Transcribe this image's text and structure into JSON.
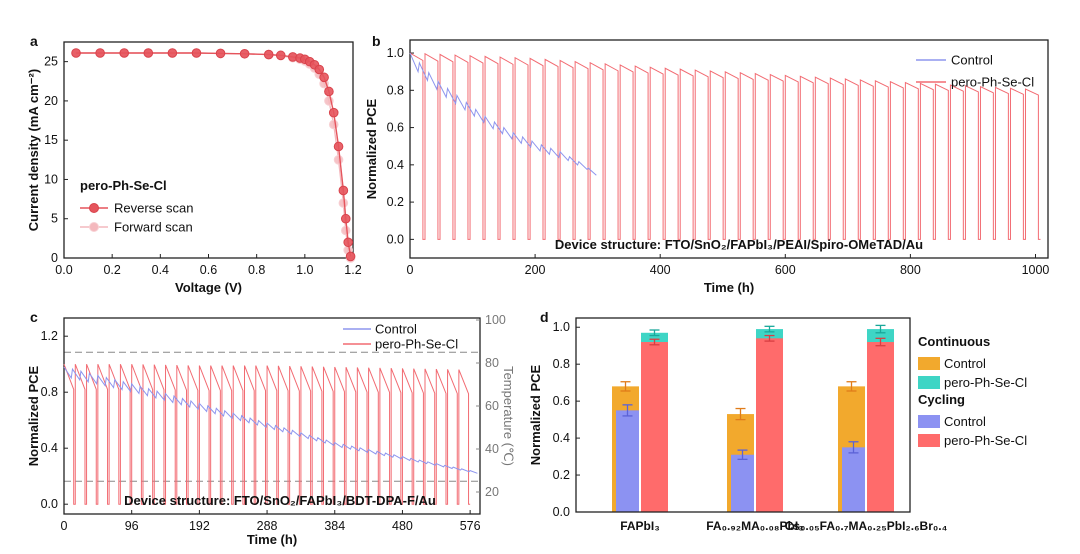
{
  "chart_data": [
    {
      "panel": "a",
      "type": "scatter",
      "xlabel": "Voltage (V)",
      "ylabel": "Current density (mA cm⁻²)",
      "xlim": [
        0,
        1.2
      ],
      "ylim": [
        0,
        27.5
      ],
      "xticks": [
        "0.0",
        "0.2",
        "0.4",
        "0.6",
        "0.8",
        "1.0",
        "1.2"
      ],
      "yticks": [
        "0",
        "5",
        "10",
        "15",
        "20",
        "25"
      ],
      "legend_title": "pero-Ph-Se-Cl",
      "legend_position": "left-middle",
      "series": [
        {
          "name": "Reverse scan",
          "color": "#e5545c",
          "x": [
            0.05,
            0.15,
            0.25,
            0.35,
            0.45,
            0.55,
            0.65,
            0.75,
            0.85,
            0.9,
            0.95,
            0.98,
            1.0,
            1.02,
            1.04,
            1.06,
            1.08,
            1.1,
            1.12,
            1.14,
            1.16,
            1.17,
            1.18,
            1.19
          ],
          "y": [
            26.1,
            26.1,
            26.1,
            26.1,
            26.1,
            26.1,
            26.05,
            26.0,
            25.9,
            25.8,
            25.6,
            25.45,
            25.3,
            25.0,
            24.6,
            24.0,
            23.0,
            21.2,
            18.5,
            14.2,
            8.6,
            5.0,
            2.0,
            0.2
          ]
        },
        {
          "name": "Forward scan",
          "color": "#f4b8bd",
          "x": [
            0.05,
            0.15,
            0.25,
            0.35,
            0.45,
            0.55,
            0.65,
            0.75,
            0.85,
            0.9,
            0.95,
            0.98,
            1.0,
            1.02,
            1.04,
            1.06,
            1.08,
            1.1,
            1.12,
            1.14,
            1.16,
            1.17,
            1.18,
            1.19
          ],
          "y": [
            26.1,
            26.1,
            26.1,
            26.1,
            26.1,
            26.1,
            26.05,
            26.0,
            25.9,
            25.75,
            25.5,
            25.3,
            25.1,
            24.7,
            24.2,
            23.4,
            22.2,
            20.0,
            17.0,
            12.5,
            7.0,
            3.5,
            1.0,
            0.0
          ]
        }
      ]
    },
    {
      "panel": "b",
      "type": "line",
      "xlabel": "Time (h)",
      "ylabel": "Normalized PCE",
      "xlim": [
        0,
        1020
      ],
      "ylim": [
        -0.1,
        1.07
      ],
      "xticks": [
        "0",
        "200",
        "400",
        "600",
        "800",
        "1000"
      ],
      "yticks": [
        "0.0",
        "0.2",
        "0.4",
        "0.6",
        "0.8",
        "1.0"
      ],
      "annotation": "Device structure: FTO/SnO₂/FAPbI₃/PEAI/Spiro-OMeTAD/Au",
      "legend_position": "top-right",
      "cycle_period_h": 24,
      "series": [
        {
          "name": "Control",
          "color": "#8d95ee",
          "x": [
            0,
            40,
            80,
            120,
            160,
            200,
            240,
            280,
            300
          ],
          "y": [
            1.0,
            0.86,
            0.76,
            0.66,
            0.58,
            0.52,
            0.47,
            0.4,
            0.33
          ]
        },
        {
          "name": "pero-Ph-Se-Cl",
          "color": "#f26b72",
          "x": [
            0,
            200,
            400,
            600,
            800,
            1020
          ],
          "y": [
            1.0,
            0.97,
            0.92,
            0.88,
            0.84,
            0.8
          ],
          "x_end": 1020
        }
      ]
    },
    {
      "panel": "c",
      "type": "line",
      "xlabel": "Time (h)",
      "ylabel": "Normalized PCE",
      "ylabel_right": "Temperature (℃)",
      "xlim": [
        0,
        590
      ],
      "ylim": [
        -0.07,
        1.33
      ],
      "y2lim": [
        20,
        100
      ],
      "xticks": [
        "0",
        "96",
        "192",
        "288",
        "384",
        "480",
        "576"
      ],
      "yticks": [
        "0.0",
        "0.4",
        "0.8",
        "1.2"
      ],
      "y2ticks": [
        "20",
        "40",
        "60",
        "80",
        "100"
      ],
      "annotation": "Device structure: FTO/SnO₂/FAPbI₃/BDT-DPA-F/Au",
      "legend_position": "top-right",
      "cycle_period_h": 24,
      "temperature_levels": [
        25,
        85
      ],
      "series": [
        {
          "name": "Control",
          "color": "#8d95ee",
          "x": [
            0,
            96,
            192,
            288,
            384,
            480,
            576,
            590
          ],
          "y": [
            0.98,
            0.86,
            0.72,
            0.58,
            0.44,
            0.34,
            0.24,
            0.22
          ]
        },
        {
          "name": "pero-Ph-Se-Cl",
          "color": "#f26b72",
          "x": [
            0,
            96,
            192,
            288,
            384,
            480,
            576,
            590
          ],
          "y": [
            1.0,
            1.0,
            0.99,
            0.99,
            0.98,
            0.97,
            0.96,
            0.95
          ]
        }
      ]
    },
    {
      "panel": "d",
      "type": "bar",
      "xlabel": "",
      "ylabel": "Normalized PCE",
      "ylim": [
        0,
        1.05
      ],
      "yticks": [
        "0.0",
        "0.2",
        "0.4",
        "0.6",
        "0.8",
        "1.0"
      ],
      "categories": [
        "FAPbI₃",
        "FA₀.₉₂MA₀.₀₈PbI₃",
        "Cs₀.₀₅FA₀.₇MA₀.₂₅PbI₂.₆Br₀.₄"
      ],
      "legend_position": "right",
      "legend_groups": [
        "Continuous",
        "Cycling"
      ],
      "series": [
        {
          "name": "Control",
          "group": "Continuous",
          "color": "#f2a92d",
          "values": [
            0.68,
            0.53,
            0.68
          ],
          "errors": [
            0.025,
            0.03,
            0.025
          ]
        },
        {
          "name": "pero-Ph-Se-Cl",
          "group": "Continuous",
          "color": "#3ed5c5",
          "values": [
            0.97,
            0.99,
            0.99
          ],
          "errors": [
            0.015,
            0.015,
            0.02
          ]
        },
        {
          "name": "Control",
          "group": "Cycling",
          "color": "#8c92f2",
          "values": [
            0.55,
            0.31,
            0.35
          ],
          "errors": [
            0.03,
            0.025,
            0.03
          ]
        },
        {
          "name": "pero-Ph-Se-Cl",
          "group": "Cycling",
          "color": "#ff6b6b",
          "values": [
            0.92,
            0.94,
            0.92
          ],
          "errors": [
            0.015,
            0.015,
            0.02
          ]
        }
      ]
    }
  ]
}
